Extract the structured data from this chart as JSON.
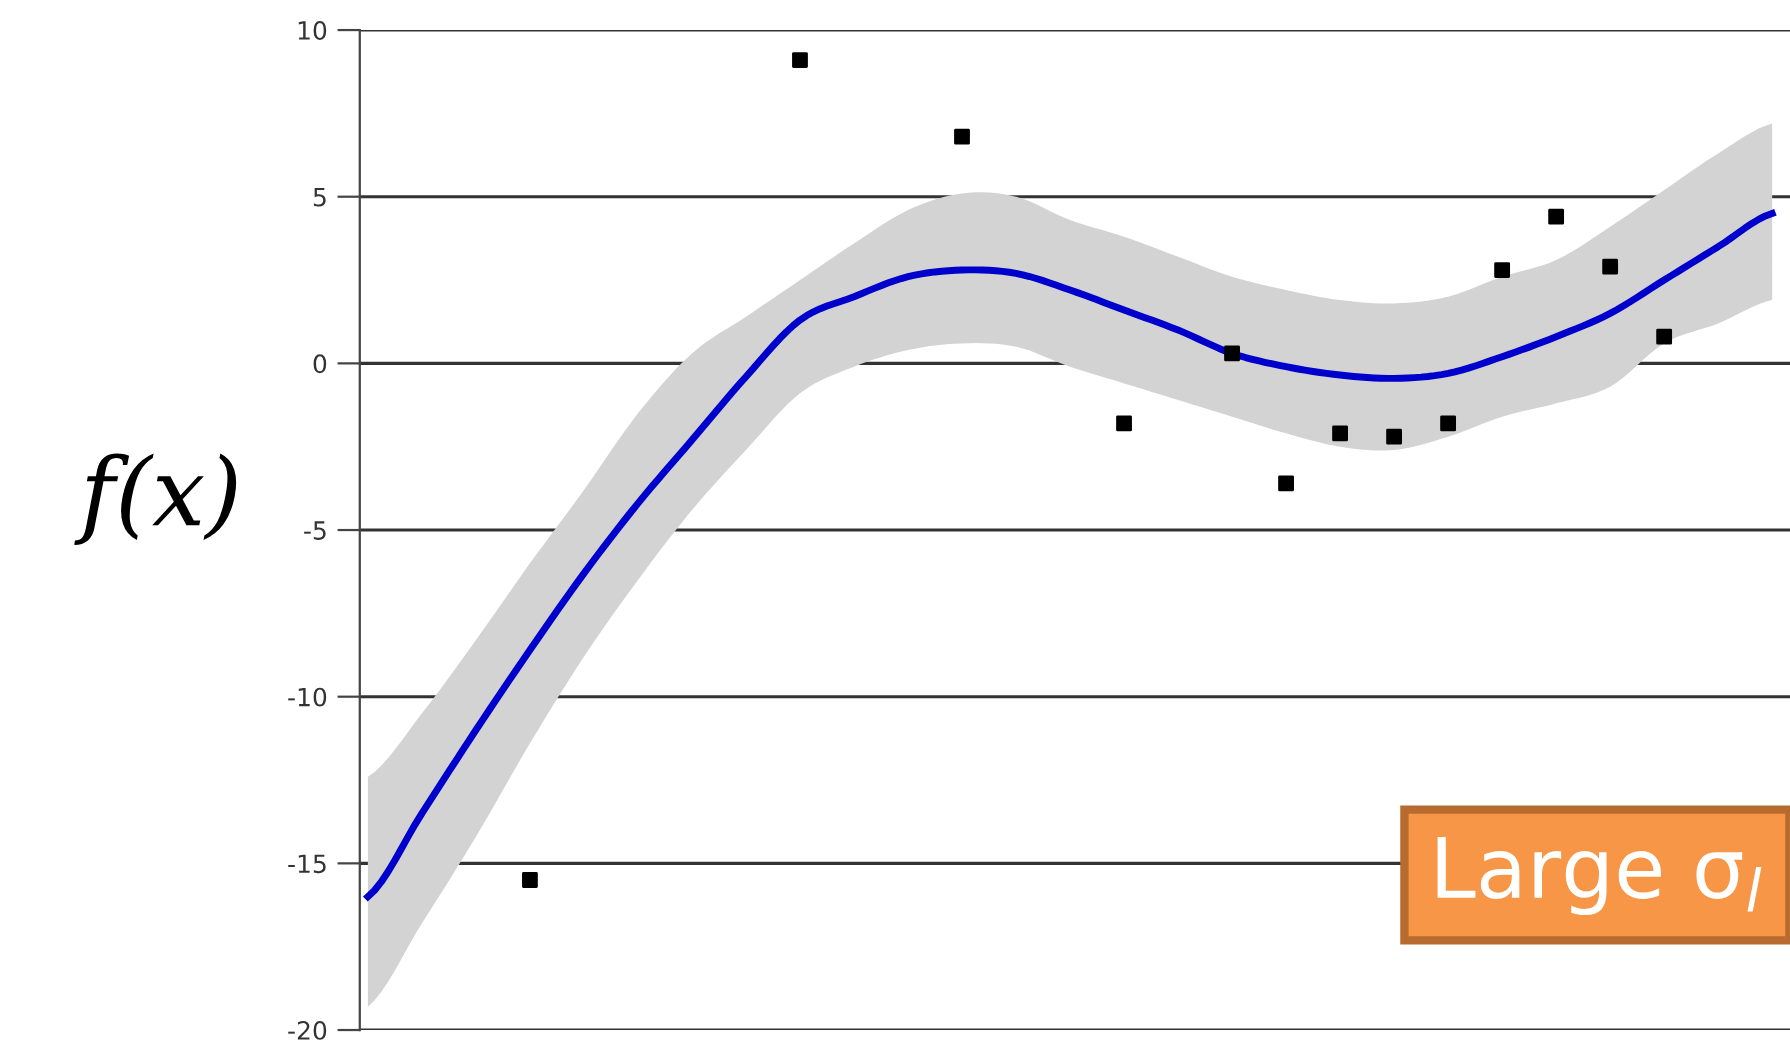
{
  "chart_data": {
    "type": "line",
    "ylabel": "f(x)",
    "annotations": [
      "Large σ$_{l}$"
    ],
    "categories": [
      null,
      null,
      null,
      null,
      null,
      null,
      null,
      null,
      null,
      null,
      null,
      null,
      null,
      null,
      null,
      null,
      null,
      null,
      null,
      null,
      null,
      null,
      null,
      null,
      null,
      null,
      null
    ],
    "series": [
      {
        "color": "#0000cc",
        "values": [
          -16.0,
          -13.5,
          -11.0,
          -8.6,
          -6.3,
          -4.2,
          -2.3,
          -0.4,
          1.3,
          2.0,
          2.6,
          2.8,
          2.7,
          2.2,
          1.6,
          1.0,
          0.3,
          -0.1,
          -0.35,
          -0.45,
          -0.3,
          0.2,
          0.8,
          1.5,
          2.5,
          3.5,
          4.5
        ],
        "lower": [
          -19.3,
          -16.8,
          -14.2,
          -11.4,
          -8.8,
          -6.5,
          -4.4,
          -2.6,
          -0.9,
          -0.1,
          0.4,
          0.6,
          0.5,
          -0.1,
          -0.6,
          -1.1,
          -1.6,
          -2.1,
          -2.5,
          -2.6,
          -2.2,
          -1.6,
          -1.2,
          -0.7,
          0.6,
          1.2,
          1.9
        ],
        "upper": [
          -12.4,
          -10.5,
          -8.3,
          -6.0,
          -3.8,
          -1.5,
          0.3,
          1.4,
          2.5,
          3.6,
          4.6,
          5.1,
          5.0,
          4.3,
          3.8,
          3.2,
          2.6,
          2.2,
          1.9,
          1.8,
          2.0,
          2.6,
          3.1,
          4.1,
          5.2,
          6.3,
          7.2
        ]
      },
      {
        "type": "scatter",
        "color": "#000000",
        "marker": "square",
        "values": [
          null,
          null,
          null,
          -15.5,
          null,
          null,
          null,
          null,
          9.1,
          null,
          null,
          6.8,
          null,
          null,
          -1.8,
          null,
          0.3,
          -3.6,
          -2.1,
          -2.2,
          -1.8,
          2.8,
          4.4,
          2.9,
          0.8,
          null,
          null
        ]
      }
    ],
    "ylim": [
      -20,
      10
    ],
    "yticks": [
      -20,
      -15,
      -10,
      -5,
      0,
      5,
      10
    ],
    "grid": "y",
    "tick_labels": "y",
    "legend": false
  }
}
